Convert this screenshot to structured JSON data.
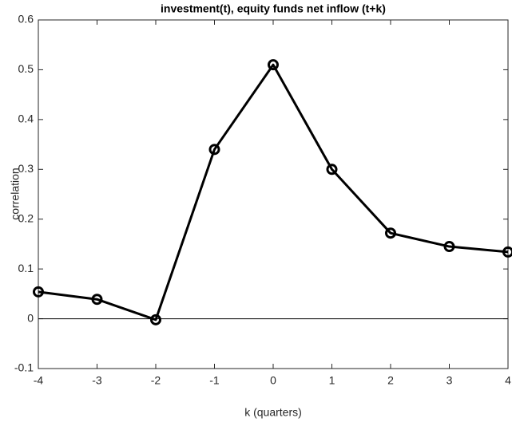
{
  "chart_data": {
    "type": "line",
    "title": "investment(t), equity funds net inflow (t+k)",
    "xlabel": "k (quarters)",
    "ylabel": "correlation",
    "x": [
      -4,
      -3,
      -2,
      -1,
      0,
      1,
      2,
      3,
      4
    ],
    "series": [
      {
        "name": "correlation",
        "color": "#000000",
        "values": [
          0.054,
          0.039,
          -0.002,
          0.34,
          0.51,
          0.3,
          0.172,
          0.145,
          0.134
        ]
      }
    ],
    "xlim": [
      -4,
      4
    ],
    "xticks": [
      -4,
      -3,
      -2,
      -1,
      0,
      1,
      2,
      3,
      4
    ],
    "ylim": [
      -0.1,
      0.6
    ],
    "yticks": [
      -0.1,
      0,
      0.1,
      0.2,
      0.3,
      0.4,
      0.5,
      0.6
    ],
    "marker": "circle",
    "zero_line": true,
    "grid": false
  }
}
